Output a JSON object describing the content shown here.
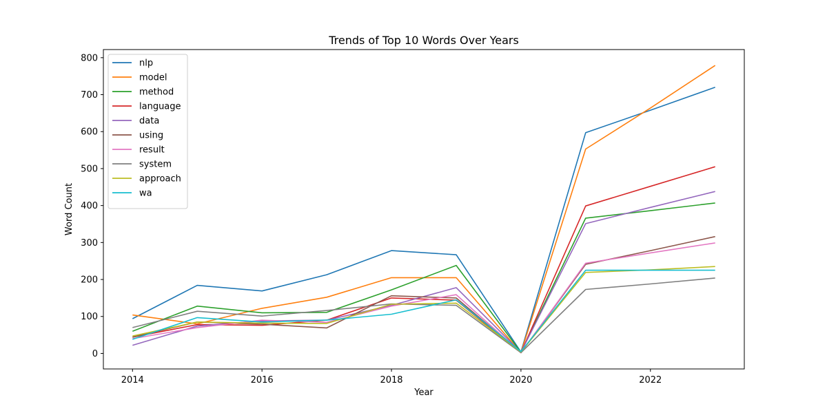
{
  "chart_data": {
    "type": "line",
    "title": "Trends of Top 10 Words Over Years",
    "xlabel": "Year",
    "ylabel": "Word Count",
    "x": [
      2014,
      2015,
      2016,
      2017,
      2018,
      2019,
      2020,
      2021,
      2022,
      2023
    ],
    "xlim": [
      2013.55,
      2023.45
    ],
    "ylim": [
      -42,
      822
    ],
    "xticks": [
      2014,
      2016,
      2018,
      2020,
      2022
    ],
    "yticks": [
      0,
      100,
      200,
      300,
      400,
      500,
      600,
      700,
      800
    ],
    "grid": false,
    "legend_position": "top-left",
    "series": [
      {
        "name": "nlp",
        "color": "#1f77b4",
        "values": [
          94,
          184,
          169,
          213,
          278,
          267,
          4,
          597,
          658,
          720
        ]
      },
      {
        "name": "model",
        "color": "#ff7f0e",
        "values": [
          104,
          80,
          122,
          152,
          205,
          205,
          2,
          553,
          664,
          779
        ]
      },
      {
        "name": "method",
        "color": "#2ca02c",
        "values": [
          60,
          128,
          110,
          111,
          172,
          238,
          3,
          366,
          386,
          407
        ]
      },
      {
        "name": "language",
        "color": "#d62728",
        "values": [
          44,
          78,
          76,
          90,
          150,
          144,
          2,
          399,
          452,
          505
        ]
      },
      {
        "name": "data",
        "color": "#9467bd",
        "values": [
          22,
          74,
          88,
          90,
          130,
          178,
          3,
          351,
          395,
          438
        ]
      },
      {
        "name": "using",
        "color": "#8c564b",
        "values": [
          44,
          85,
          79,
          69,
          156,
          150,
          2,
          241,
          278,
          316
        ]
      },
      {
        "name": "result",
        "color": "#e377c2",
        "values": [
          40,
          70,
          90,
          84,
          128,
          159,
          2,
          244,
          272,
          299
        ]
      },
      {
        "name": "system",
        "color": "#7f7f7f",
        "values": [
          70,
          114,
          101,
          116,
          134,
          130,
          2,
          173,
          188,
          204
        ]
      },
      {
        "name": "approach",
        "color": "#bcbd22",
        "values": [
          47,
          85,
          82,
          81,
          133,
          136,
          4,
          219,
          226,
          235
        ]
      },
      {
        "name": "wa",
        "color": "#17becf",
        "values": [
          38,
          97,
          85,
          90,
          106,
          145,
          5,
          225,
          225,
          225
        ]
      }
    ]
  }
}
